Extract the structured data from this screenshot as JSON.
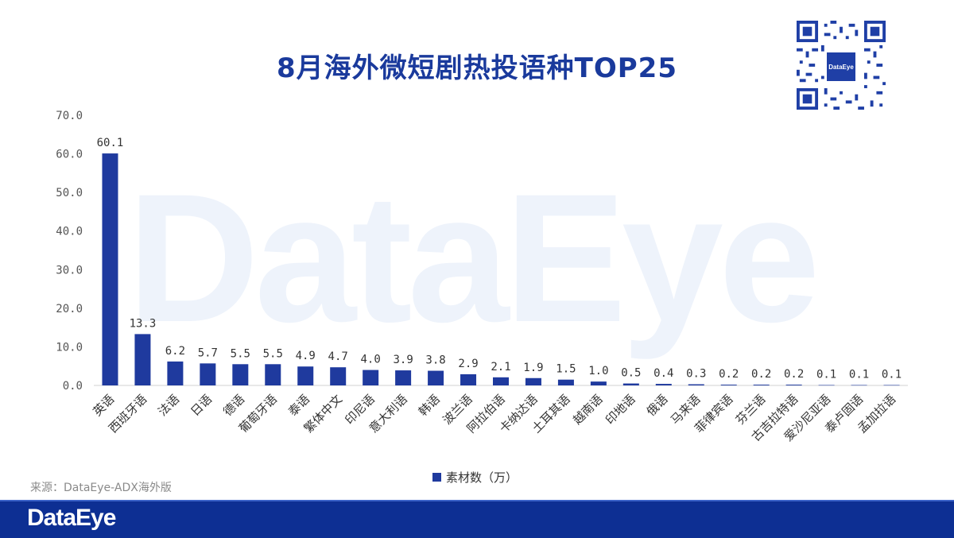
{
  "title": "8月海外微短剧热投语种TOP25",
  "watermark": "DataEye",
  "qr_badge": "DataEye",
  "source": "来源：DataEye-ADX海外版",
  "footer_logo": "DataEye",
  "colors": {
    "bar": "#1f3a9e",
    "title": "#1a3a9c",
    "footer": "#0d2f93"
  },
  "chart_data": {
    "type": "bar",
    "categories": [
      "英语",
      "西班牙语",
      "法语",
      "日语",
      "德语",
      "葡萄牙语",
      "泰语",
      "繁体中文",
      "印尼语",
      "意大利语",
      "韩语",
      "波兰语",
      "阿拉伯语",
      "卡纳达语",
      "土耳其语",
      "越南语",
      "印地语",
      "俄语",
      "马来语",
      "菲律宾语",
      "芬兰语",
      "古吉拉特语",
      "爱沙尼亚语",
      "泰卢固语",
      "孟加拉语"
    ],
    "series": [
      {
        "name": "素材数（万）",
        "values": [
          60.1,
          13.3,
          6.2,
          5.7,
          5.5,
          5.5,
          4.9,
          4.7,
          4.0,
          3.9,
          3.8,
          2.9,
          2.1,
          1.9,
          1.5,
          1.0,
          0.5,
          0.4,
          0.3,
          0.2,
          0.2,
          0.2,
          0.1,
          0.1,
          0.1
        ]
      }
    ],
    "yticks": [
      "0.0",
      "10.0",
      "20.0",
      "30.0",
      "40.0",
      "50.0",
      "60.0",
      "70.0"
    ],
    "ylim": [
      0,
      70
    ],
    "legend": "bottom-center",
    "grid": false
  }
}
